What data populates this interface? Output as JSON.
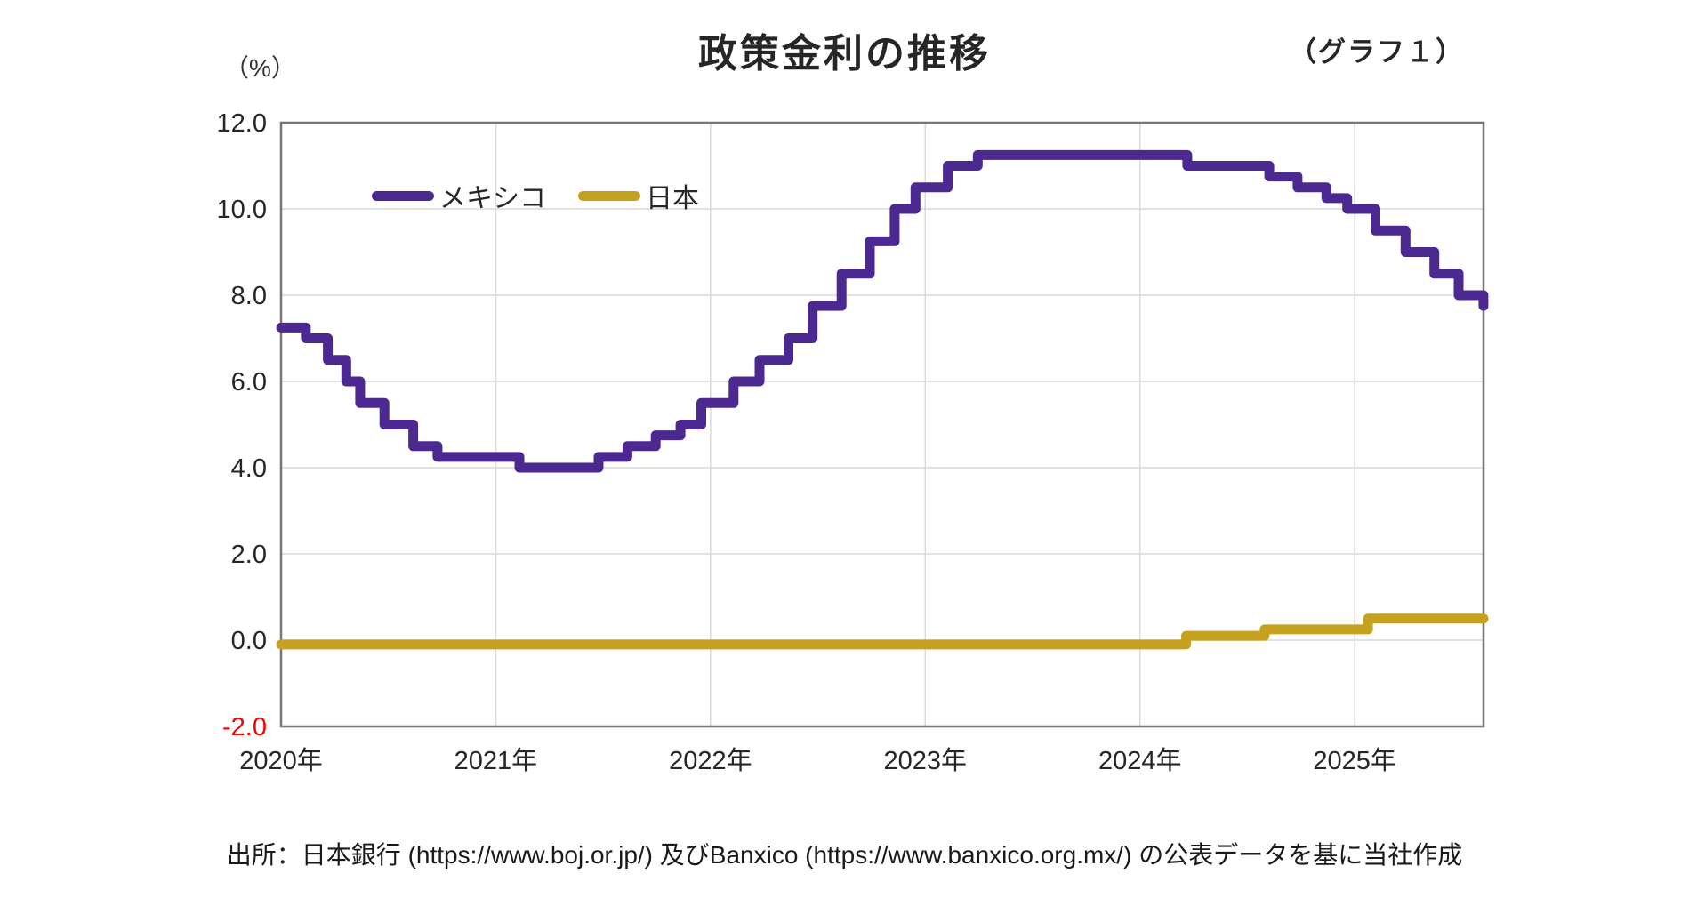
{
  "header": {
    "title": "政策金利の推移",
    "graph_number": "（グラフ１）",
    "percent_label": "（%）"
  },
  "source_note": "出所：日本銀行 (https://www.boj.or.jp/) 及びBanxico (https://www.banxico.org.mx/) の公表データを基に当社作成",
  "chart_data": {
    "type": "line",
    "line_style": "step-after",
    "title": "政策金利の推移",
    "unit_label": "（%）",
    "graph_label": "（グラフ１）",
    "grid": true,
    "legend_position": "inside-top-left",
    "ylim": [
      -2.0,
      12.0
    ],
    "xlim_years": [
      2020.0,
      2025.6
    ],
    "colors": {
      "grid": "#D9D9D9",
      "plot_border": "#767676",
      "axis_text": "#262626",
      "negative_tick": "#FF0000"
    },
    "y_ticks": [
      {
        "label": "12.0",
        "value": 12.0
      },
      {
        "label": "10.0",
        "value": 10.0
      },
      {
        "label": "8.0",
        "value": 8.0
      },
      {
        "label": "6.0",
        "value": 6.0
      },
      {
        "label": "4.0",
        "value": 4.0
      },
      {
        "label": "2.0",
        "value": 2.0
      },
      {
        "label": "0.0",
        "value": 0.0
      },
      {
        "label": "-2.0",
        "value": -2.0,
        "color": "#FF0000"
      }
    ],
    "x_ticks": [
      {
        "label": "2020年",
        "year": 2020
      },
      {
        "label": "2021年",
        "year": 2021
      },
      {
        "label": "2022年",
        "year": 2022
      },
      {
        "label": "2023年",
        "year": 2023
      },
      {
        "label": "2024年",
        "year": 2024
      },
      {
        "label": "2025年",
        "year": 2025
      }
    ],
    "series": [
      {
        "name": "メキシコ",
        "color": "#4B2991",
        "points": [
          {
            "date": "2020-01-01",
            "rate": 7.25
          },
          {
            "date": "2020-02-13",
            "rate": 7.0
          },
          {
            "date": "2020-03-20",
            "rate": 6.5
          },
          {
            "date": "2020-04-21",
            "rate": 6.0
          },
          {
            "date": "2020-05-14",
            "rate": 5.5
          },
          {
            "date": "2020-06-25",
            "rate": 5.0
          },
          {
            "date": "2020-08-13",
            "rate": 4.5
          },
          {
            "date": "2020-09-24",
            "rate": 4.25
          },
          {
            "date": "2021-02-11",
            "rate": 4.0
          },
          {
            "date": "2021-06-24",
            "rate": 4.25
          },
          {
            "date": "2021-08-12",
            "rate": 4.5
          },
          {
            "date": "2021-09-30",
            "rate": 4.75
          },
          {
            "date": "2021-11-11",
            "rate": 5.0
          },
          {
            "date": "2021-12-16",
            "rate": 5.5
          },
          {
            "date": "2022-02-10",
            "rate": 6.0
          },
          {
            "date": "2022-03-24",
            "rate": 6.5
          },
          {
            "date": "2022-05-12",
            "rate": 7.0
          },
          {
            "date": "2022-06-23",
            "rate": 7.75
          },
          {
            "date": "2022-08-11",
            "rate": 8.5
          },
          {
            "date": "2022-09-29",
            "rate": 9.25
          },
          {
            "date": "2022-11-10",
            "rate": 10.0
          },
          {
            "date": "2022-12-15",
            "rate": 10.5
          },
          {
            "date": "2023-02-09",
            "rate": 11.0
          },
          {
            "date": "2023-03-30",
            "rate": 11.25
          },
          {
            "date": "2024-03-21",
            "rate": 11.0
          },
          {
            "date": "2024-08-08",
            "rate": 10.75
          },
          {
            "date": "2024-09-26",
            "rate": 10.5
          },
          {
            "date": "2024-11-14",
            "rate": 10.25
          },
          {
            "date": "2024-12-19",
            "rate": 10.0
          },
          {
            "date": "2025-02-06",
            "rate": 9.5
          },
          {
            "date": "2025-03-27",
            "rate": 9.0
          },
          {
            "date": "2025-05-15",
            "rate": 8.5
          },
          {
            "date": "2025-06-26",
            "rate": 8.0
          },
          {
            "date": "2025-08-07",
            "rate": 7.75
          }
        ]
      },
      {
        "name": "日本",
        "color": "#C6A11F",
        "points": [
          {
            "date": "2020-01-01",
            "rate": -0.1
          },
          {
            "date": "2024-03-19",
            "rate": 0.1
          },
          {
            "date": "2024-07-31",
            "rate": 0.25
          },
          {
            "date": "2025-01-24",
            "rate": 0.5
          }
        ]
      }
    ]
  }
}
